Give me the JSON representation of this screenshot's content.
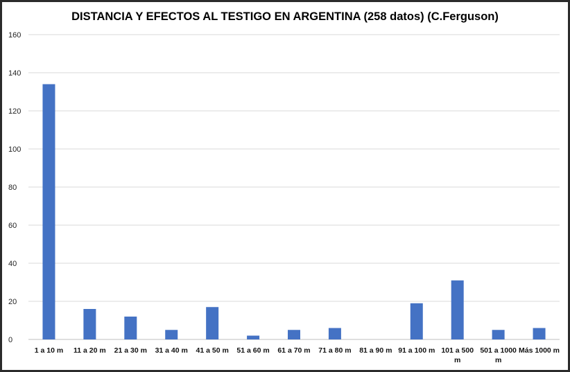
{
  "chart_data": {
    "type": "bar",
    "title": "DISTANCIA Y EFECTOS AL TESTIGO EN ARGENTINA (258 datos) (C.Ferguson)",
    "xlabel": "",
    "ylabel": "",
    "categories": [
      "1 a 10 m",
      "11 a 20 m",
      "21 a 30 m",
      "31 a 40 m",
      "41 a 50 m",
      "51 a 60 m",
      "61 a 70 m",
      "71 a 80 m",
      "81 a 90 m",
      "91 a 100 m",
      "101 a 500 m",
      "501 a 1000 m",
      "Más 1000 m"
    ],
    "values": [
      134,
      16,
      12,
      5,
      17,
      2,
      5,
      6,
      0,
      19,
      31,
      5,
      6
    ],
    "ylim": [
      0,
      160
    ],
    "yticks": [
      0,
      20,
      40,
      60,
      80,
      100,
      120,
      140,
      160
    ],
    "grid": true,
    "legend": "none",
    "bar_color": "#4472c4"
  }
}
